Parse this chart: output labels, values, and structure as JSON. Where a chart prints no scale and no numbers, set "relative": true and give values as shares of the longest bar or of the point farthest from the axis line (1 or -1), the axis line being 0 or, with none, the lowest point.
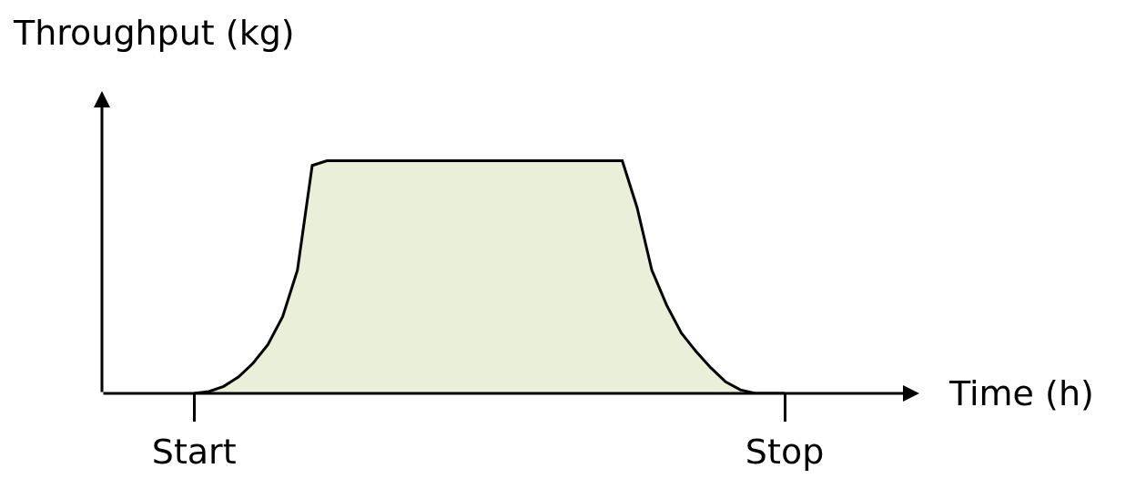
{
  "chart_data": {
    "type": "area",
    "relative": true,
    "xlabel": "Time (h)",
    "ylabel": "Throughput (kg)",
    "categories": [
      "Start",
      null,
      null,
      null,
      null,
      null,
      null,
      null,
      null,
      null,
      null,
      null,
      null,
      null,
      null,
      null,
      null,
      null,
      null,
      null,
      null,
      null,
      null,
      null,
      null,
      null,
      null,
      null,
      null,
      null,
      null,
      null,
      null,
      null,
      null,
      null,
      null,
      null,
      null,
      null,
      "Stop"
    ],
    "series": [
      {
        "color": "#e9efd8",
        "values": [
          0,
          0.008,
          0.03,
          0.07,
          0.13,
          0.21,
          0.33,
          0.53,
          0.98,
          1,
          1,
          1,
          1,
          1,
          1,
          1,
          1,
          1,
          1,
          1,
          1,
          1,
          1,
          1,
          1,
          1,
          1,
          1,
          1,
          1,
          0.8,
          0.53,
          0.38,
          0.26,
          0.18,
          0.11,
          0.05,
          0.015,
          0,
          0,
          0
        ]
      }
    ]
  }
}
